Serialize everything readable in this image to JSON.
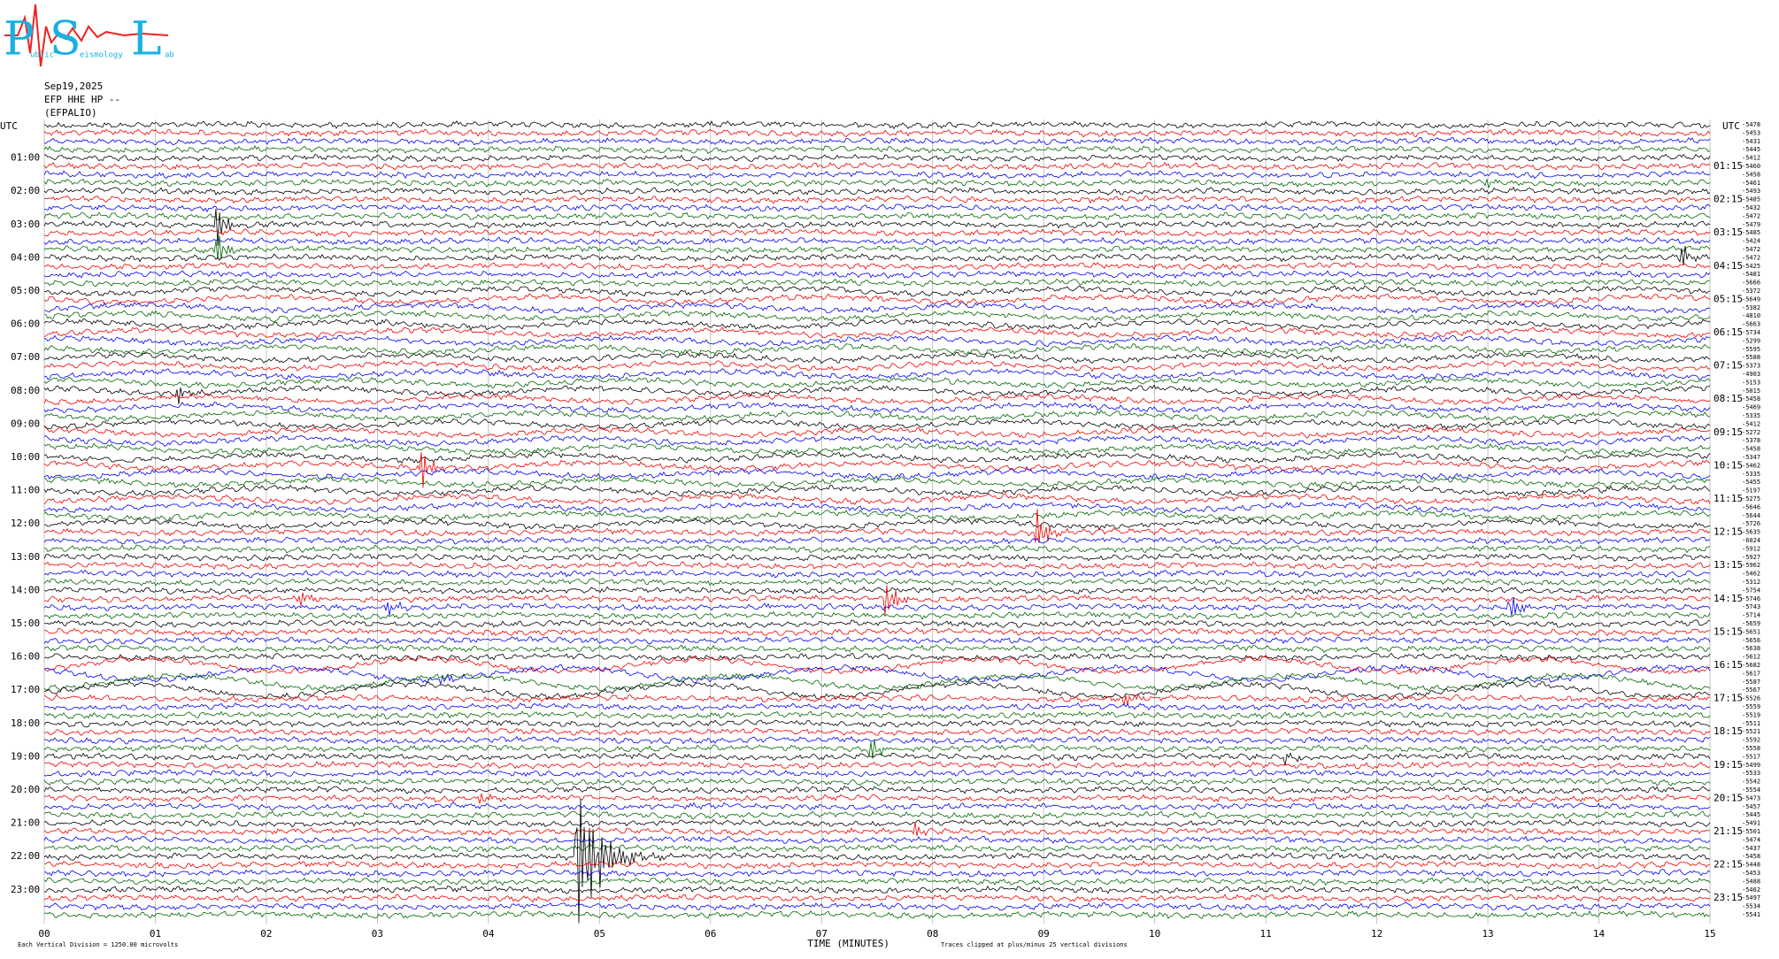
{
  "logo": {
    "letters": [
      "P",
      "S",
      "L"
    ],
    "small": [
      "ublic",
      "eismology",
      "ab"
    ]
  },
  "header": {
    "date": "Sep19,2025",
    "channel": "EFP HHE HP --",
    "station": "(EFPALIO)"
  },
  "utc_left": "UTC",
  "utc_right": "UTC",
  "left_labels": [
    "01:00",
    "02:00",
    "03:00",
    "04:00",
    "05:00",
    "06:00",
    "07:00",
    "08:00",
    "09:00",
    "10:00",
    "11:00",
    "12:00",
    "13:00",
    "14:00",
    "15:00",
    "16:00",
    "17:00",
    "18:00",
    "19:00",
    "20:00",
    "21:00",
    "22:00",
    "23:00"
  ],
  "right_labels": [
    "01:15",
    "02:15",
    "03:15",
    "04:15",
    "05:15",
    "06:15",
    "07:15",
    "08:15",
    "09:15",
    "10:15",
    "11:15",
    "12:15",
    "13:15",
    "14:15",
    "15:15",
    "16:15",
    "17:15",
    "18:15",
    "19:15",
    "20:15",
    "21:15",
    "22:15",
    "23:15"
  ],
  "offsets": [
    -5478,
    -5453,
    -5431,
    -5445,
    -5412,
    -5460,
    -5458,
    -5461,
    -5493,
    -5485,
    -5432,
    -5472,
    -5479,
    -5485,
    -5424,
    -5472,
    -5472,
    -5425,
    -5481,
    -5666,
    -5372,
    -5649,
    -5382,
    -4810,
    -5663,
    -5734,
    -5299,
    -5595,
    -5588,
    -5373,
    -4903,
    -5153,
    -5015,
    -5458,
    -5469,
    -5335,
    -5412,
    -5272,
    -5378,
    -5458,
    -5347,
    -5462,
    -5335,
    -5455,
    -5197,
    -5275,
    -5646,
    -5644,
    -5726,
    -5635,
    -6024,
    -5912,
    -5927,
    -5962,
    -5462,
    -5312,
    -5754,
    -5746,
    -5743,
    -5714,
    -5659,
    -5651,
    -5656,
    -5638,
    -5612,
    -5682,
    -5617,
    -5587,
    -5567,
    -5526,
    -5559,
    -5519,
    -5511,
    -5521,
    -5592,
    -5558,
    -5517,
    -5499,
    -5533,
    -5542,
    -5554,
    -5473,
    -5457,
    -5445,
    -5491,
    -5501,
    -5474,
    -5437,
    -5458,
    -5448,
    -5453,
    -5488,
    -5462,
    -5497,
    -5534,
    -5541
  ],
  "xticks": [
    {
      "value": 0,
      "label": "00"
    },
    {
      "value": 1,
      "label": "01"
    },
    {
      "value": 2,
      "label": "02"
    },
    {
      "value": 3,
      "label": "03"
    },
    {
      "value": 4,
      "label": "04"
    },
    {
      "value": 5,
      "label": "05"
    },
    {
      "value": 6,
      "label": "06"
    },
    {
      "value": 7,
      "label": "07"
    },
    {
      "value": 8,
      "label": "08"
    },
    {
      "value": 9,
      "label": "09"
    },
    {
      "value": 10,
      "label": "10"
    },
    {
      "value": 11,
      "label": "11"
    },
    {
      "value": 12,
      "label": "12"
    },
    {
      "value": 13,
      "label": "13"
    },
    {
      "value": 14,
      "label": "14"
    },
    {
      "value": 15,
      "label": "15"
    }
  ],
  "xlabel": "TIME (MINUTES)",
  "clip_note": "Traces clipped at plus/minus 25 vertical divisions",
  "scale_note": "Each Vertical Division = 1250.00 microvolts"
}
